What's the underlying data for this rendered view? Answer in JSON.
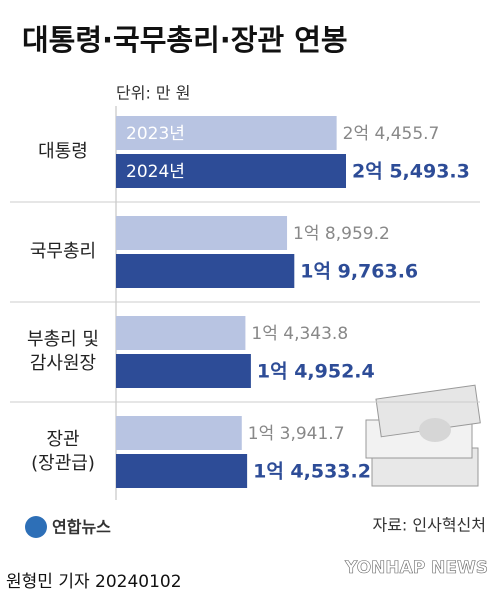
{
  "chart_data": {
    "type": "bar",
    "orientation": "horizontal",
    "title": "대통령·국무총리·장관 연봉",
    "unit_note": "단위: 만 원",
    "categories": [
      "대통령",
      "국무총리",
      "부총리 및\n감사원장",
      "장관\n(장관급)"
    ],
    "series": [
      {
        "name": "2023년",
        "color": "#b8c4e2",
        "values": [
          24455.7,
          18959.2,
          14343.8,
          13941.7
        ],
        "value_labels": [
          "2억 4,455.7",
          "1억 8,959.2",
          "1억 4,343.8",
          "1억 3,941.7"
        ]
      },
      {
        "name": "2024년",
        "color": "#2d4c97",
        "values": [
          25493.3,
          19763.6,
          14952.4,
          14533.2
        ],
        "value_labels": [
          "2억 5,493.3",
          "1억 9,763.6",
          "1억 4,952.4",
          "1억 4,533.2"
        ]
      }
    ],
    "source": "자료: 인사혁신처",
    "logo": "연합뉴스",
    "watermark": "YONHAP NEWS",
    "byline": "원형민 기자  20240102"
  }
}
